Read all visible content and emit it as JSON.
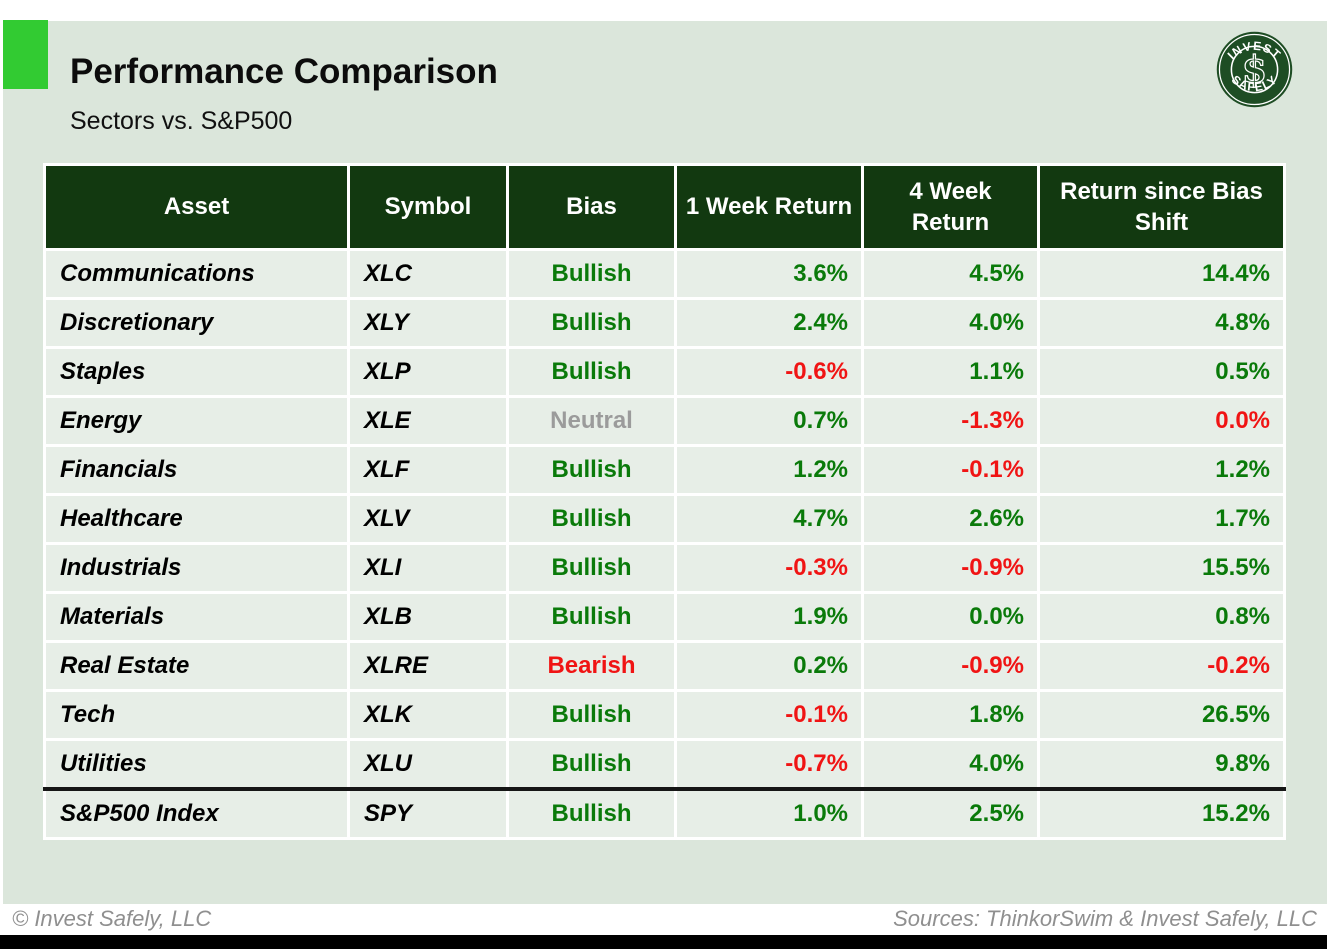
{
  "header": {
    "title": "Performance Comparison",
    "subtitle": "Sectors vs. S&P500"
  },
  "logo": {
    "top_text": "INVEST",
    "bottom_text": "SAFELY",
    "monogram": "$"
  },
  "chart_data": {
    "type": "table",
    "title": "Performance Comparison",
    "subtitle": "Sectors vs. S&P500",
    "columns": [
      "Asset",
      "Symbol",
      "Bias",
      "1 Week Return",
      "4 Week Return",
      "Return since Bias Shift"
    ],
    "rows": [
      {
        "asset": "Communications",
        "symbol": "XLC",
        "bias": "Bullish",
        "bias_tone": "positive",
        "week1": "3.6%",
        "week1_tone": "positive",
        "week4": "4.5%",
        "week4_tone": "positive",
        "since_shift": "14.4%",
        "since_shift_tone": "positive",
        "separator_above": false
      },
      {
        "asset": "Discretionary",
        "symbol": "XLY",
        "bias": "Bullish",
        "bias_tone": "positive",
        "week1": "2.4%",
        "week1_tone": "positive",
        "week4": "4.0%",
        "week4_tone": "positive",
        "since_shift": "4.8%",
        "since_shift_tone": "positive",
        "separator_above": false
      },
      {
        "asset": "Staples",
        "symbol": "XLP",
        "bias": "Bullish",
        "bias_tone": "positive",
        "week1": "-0.6%",
        "week1_tone": "negative",
        "week4": "1.1%",
        "week4_tone": "positive",
        "since_shift": "0.5%",
        "since_shift_tone": "positive",
        "separator_above": false
      },
      {
        "asset": "Energy",
        "symbol": "XLE",
        "bias": "Neutral",
        "bias_tone": "neutral",
        "week1": "0.7%",
        "week1_tone": "positive",
        "week4": "-1.3%",
        "week4_tone": "negative",
        "since_shift": "0.0%",
        "since_shift_tone": "negative",
        "separator_above": false
      },
      {
        "asset": "Financials",
        "symbol": "XLF",
        "bias": "Bullish",
        "bias_tone": "positive",
        "week1": "1.2%",
        "week1_tone": "positive",
        "week4": "-0.1%",
        "week4_tone": "negative",
        "since_shift": "1.2%",
        "since_shift_tone": "positive",
        "separator_above": false
      },
      {
        "asset": "Healthcare",
        "symbol": "XLV",
        "bias": "Bullish",
        "bias_tone": "positive",
        "week1": "4.7%",
        "week1_tone": "positive",
        "week4": "2.6%",
        "week4_tone": "positive",
        "since_shift": "1.7%",
        "since_shift_tone": "positive",
        "separator_above": false
      },
      {
        "asset": "Industrials",
        "symbol": "XLI",
        "bias": "Bullish",
        "bias_tone": "positive",
        "week1": "-0.3%",
        "week1_tone": "negative",
        "week4": "-0.9%",
        "week4_tone": "negative",
        "since_shift": "15.5%",
        "since_shift_tone": "positive",
        "separator_above": false
      },
      {
        "asset": "Materials",
        "symbol": "XLB",
        "bias": "Bullish",
        "bias_tone": "positive",
        "week1": "1.9%",
        "week1_tone": "positive",
        "week4": "0.0%",
        "week4_tone": "positive",
        "since_shift": "0.8%",
        "since_shift_tone": "positive",
        "separator_above": false
      },
      {
        "asset": "Real Estate",
        "symbol": "XLRE",
        "bias": "Bearish",
        "bias_tone": "negative",
        "week1": "0.2%",
        "week1_tone": "positive",
        "week4": "-0.9%",
        "week4_tone": "negative",
        "since_shift": "-0.2%",
        "since_shift_tone": "negative",
        "separator_above": false
      },
      {
        "asset": "Tech",
        "symbol": "XLK",
        "bias": "Bullish",
        "bias_tone": "positive",
        "week1": "-0.1%",
        "week1_tone": "negative",
        "week4": "1.8%",
        "week4_tone": "positive",
        "since_shift": "26.5%",
        "since_shift_tone": "positive",
        "separator_above": false
      },
      {
        "asset": "Utilities",
        "symbol": "XLU",
        "bias": "Bullish",
        "bias_tone": "positive",
        "week1": "-0.7%",
        "week1_tone": "negative",
        "week4": "4.0%",
        "week4_tone": "positive",
        "since_shift": "9.8%",
        "since_shift_tone": "positive",
        "separator_above": false
      },
      {
        "asset": "S&P500 Index",
        "symbol": "SPY",
        "bias": "Bullish",
        "bias_tone": "positive",
        "week1": "1.0%",
        "week1_tone": "positive",
        "week4": "2.5%",
        "week4_tone": "positive",
        "since_shift": "15.2%",
        "since_shift_tone": "positive",
        "separator_above": true
      }
    ]
  },
  "footer": {
    "left": "© Invest Safely, LLC",
    "right": "Sources: ThinkorSwim & Invest Safely, LLC"
  },
  "colors": {
    "accent_green": "#32cb32",
    "header_green": "#123910",
    "page_bg": "#dbe6db",
    "row_bg": "#e7eee7",
    "positive": "#0a7a0a",
    "negative": "#f01414",
    "neutral": "#9b9b9b"
  }
}
